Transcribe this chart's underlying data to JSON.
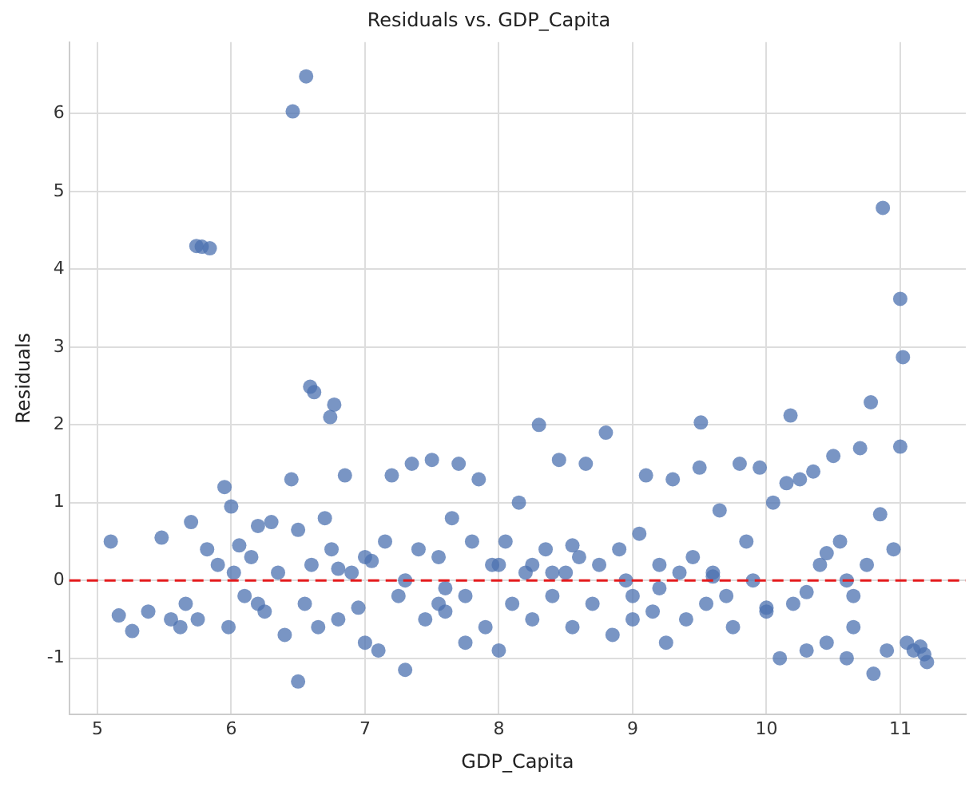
{
  "chart_data": {
    "type": "scatter",
    "title": "Residuals vs. GDP_Capita",
    "xlabel": "GDP_Capita",
    "ylabel": "Residuals",
    "xlim": [
      4.79,
      11.49
    ],
    "ylim": [
      -1.72,
      6.92
    ],
    "xticks": [
      5,
      6,
      7,
      8,
      9,
      10,
      11
    ],
    "yticks": [
      -1,
      0,
      1,
      2,
      3,
      4,
      5,
      6
    ],
    "grid": true,
    "marker": "circle",
    "series": [
      {
        "color": "#4c72b0",
        "x": [
          6.56,
          6.46,
          5.74,
          5.78,
          5.84,
          6.59,
          6.62,
          6.77,
          6.74,
          10.87,
          11.0,
          11.02,
          10.78,
          11.0,
          10.18,
          9.51,
          5.1,
          5.16,
          5.26,
          5.38,
          5.48,
          5.55,
          5.62,
          5.7,
          5.66,
          5.75,
          5.82,
          5.9,
          5.95,
          5.98,
          6.0,
          6.02,
          6.06,
          6.1,
          6.15,
          6.2,
          6.25,
          6.3,
          6.35,
          6.4,
          6.45,
          6.5,
          6.55,
          6.6,
          6.65,
          6.7,
          6.75,
          6.8,
          6.85,
          6.9,
          6.95,
          7.0,
          7.05,
          7.1,
          7.15,
          7.2,
          7.25,
          7.3,
          7.35,
          7.4,
          7.45,
          7.5,
          7.55,
          7.6,
          7.65,
          7.7,
          7.75,
          7.8,
          7.85,
          7.9,
          7.95,
          8.0,
          8.05,
          8.1,
          8.15,
          8.2,
          8.25,
          8.3,
          8.35,
          8.4,
          8.45,
          8.5,
          8.55,
          8.6,
          8.65,
          8.7,
          8.75,
          8.8,
          8.85,
          8.9,
          8.95,
          9.0,
          9.05,
          9.1,
          9.15,
          9.2,
          9.25,
          9.3,
          9.35,
          9.4,
          9.45,
          9.5,
          9.55,
          9.6,
          9.65,
          9.7,
          9.75,
          9.8,
          9.85,
          9.9,
          9.95,
          10.0,
          10.05,
          10.1,
          10.15,
          10.2,
          10.25,
          10.3,
          10.35,
          10.4,
          10.45,
          10.5,
          10.55,
          10.6,
          10.65,
          10.7,
          10.75,
          10.8,
          10.85,
          10.9,
          10.95,
          11.05,
          11.1,
          11.15,
          11.18,
          11.2,
          6.5,
          7.3,
          7.55,
          7.75,
          8.25,
          8.55,
          9.2,
          10.45,
          10.65,
          6.2,
          7.0,
          8.0,
          9.0,
          10.0,
          6.8,
          7.6,
          8.4,
          9.6,
          10.3,
          10.6
        ],
        "values": [
          6.48,
          6.03,
          4.3,
          4.29,
          4.27,
          2.49,
          2.42,
          2.26,
          2.1,
          4.79,
          3.62,
          2.87,
          2.29,
          1.72,
          2.12,
          2.03,
          0.5,
          -0.45,
          -0.65,
          -0.4,
          0.55,
          -0.5,
          -0.6,
          0.75,
          -0.3,
          -0.5,
          0.4,
          0.2,
          1.2,
          -0.6,
          0.95,
          0.1,
          0.45,
          -0.2,
          0.3,
          0.7,
          -0.4,
          0.75,
          0.1,
          -0.7,
          1.3,
          0.65,
          -0.3,
          0.2,
          -0.6,
          0.8,
          0.4,
          -0.5,
          1.35,
          0.1,
          -0.35,
          -0.8,
          0.25,
          -0.9,
          0.5,
          1.35,
          -0.2,
          0.0,
          1.5,
          0.4,
          -0.5,
          1.55,
          0.3,
          -0.4,
          0.8,
          1.5,
          -0.2,
          0.5,
          1.3,
          -0.6,
          0.2,
          -0.9,
          0.5,
          -0.3,
          1.0,
          0.1,
          -0.5,
          2.0,
          0.4,
          -0.2,
          1.55,
          0.1,
          -0.6,
          0.3,
          1.5,
          -0.3,
          0.2,
          1.9,
          -0.7,
          0.4,
          0.0,
          -0.5,
          0.6,
          1.35,
          -0.4,
          0.2,
          -0.8,
          1.3,
          0.1,
          -0.5,
          0.3,
          1.45,
          -0.3,
          0.1,
          0.9,
          -0.2,
          -0.6,
          1.5,
          0.5,
          0.0,
          1.45,
          -0.4,
          1.0,
          -1.0,
          1.25,
          -0.3,
          1.3,
          -0.9,
          1.4,
          0.2,
          -0.8,
          1.6,
          0.5,
          -1.0,
          -0.6,
          1.7,
          0.2,
          -1.2,
          0.85,
          -0.9,
          0.4,
          -0.8,
          -0.9,
          -0.85,
          -0.95,
          -1.05,
          -1.3,
          -1.15,
          -0.3,
          -0.8,
          0.2,
          0.45,
          -0.1,
          0.35,
          -0.2,
          -0.3,
          0.3,
          0.2,
          -0.2,
          -0.35,
          0.15,
          -0.1,
          0.1,
          0.05,
          -0.15,
          0.0
        ]
      }
    ],
    "ref_lines": [
      {
        "axis": "y",
        "value": 0,
        "color": "#e41a1c",
        "line_style": "dashed"
      }
    ]
  }
}
